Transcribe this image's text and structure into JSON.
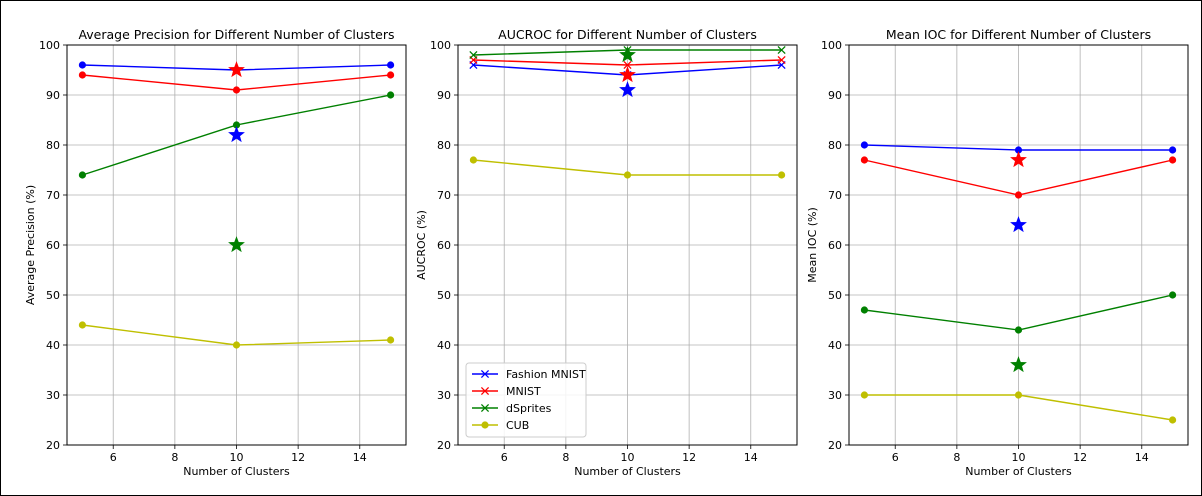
{
  "chart_data": [
    {
      "type": "line",
      "title": "Average Precision for Different Number of Clusters",
      "xlabel": "Number of Clusters",
      "ylabel": "Average Precision (%)",
      "xlim": [
        4.5,
        15.5
      ],
      "ylim": [
        20,
        100
      ],
      "xticks": [
        6,
        8,
        10,
        12,
        14
      ],
      "yticks": [
        20,
        30,
        40,
        50,
        60,
        70,
        80,
        90,
        100
      ],
      "grid": true,
      "x": [
        5,
        10,
        15
      ],
      "marker": "o",
      "series": [
        {
          "color": "#0000ff",
          "values": [
            96,
            95,
            96
          ],
          "star": {
            "x": 10,
            "y": 82
          }
        },
        {
          "color": "#ff0000",
          "values": [
            94,
            91,
            94
          ],
          "star": {
            "x": 10,
            "y": 95
          }
        },
        {
          "color": "#008000",
          "values": [
            74,
            84,
            90
          ],
          "star": {
            "x": 10,
            "y": 60
          }
        },
        {
          "color": "#bfbf00",
          "values": [
            44,
            40,
            41
          ]
        }
      ]
    },
    {
      "type": "line",
      "title": "AUCROC for Different Number of Clusters",
      "xlabel": "Number of Clusters",
      "ylabel": "AUCROC (%)",
      "xlim": [
        4.5,
        15.5
      ],
      "ylim": [
        20,
        100
      ],
      "xticks": [
        6,
        8,
        10,
        12,
        14
      ],
      "yticks": [
        20,
        30,
        40,
        50,
        60,
        70,
        80,
        90,
        100
      ],
      "grid": true,
      "x": [
        5,
        10,
        15
      ],
      "marker": "x",
      "legend_placement": "lower-left",
      "series": [
        {
          "name": "Fashion MNIST",
          "color": "#0000ff",
          "values": [
            96,
            94,
            96
          ],
          "star": {
            "x": 10,
            "y": 91
          }
        },
        {
          "name": "MNIST",
          "color": "#ff0000",
          "values": [
            97,
            96,
            97
          ],
          "star": {
            "x": 10,
            "y": 94
          }
        },
        {
          "name": "dSprites",
          "color": "#008000",
          "values": [
            98,
            99,
            99
          ],
          "star": {
            "x": 10,
            "y": 98
          }
        },
        {
          "name": "CUB",
          "color": "#bfbf00",
          "values": [
            77,
            74,
            74
          ],
          "marker": "o"
        }
      ]
    },
    {
      "type": "line",
      "title": "Mean IOC for Different Number of Clusters",
      "xlabel": "Number of Clusters",
      "ylabel": "Mean IOC (%)",
      "xlim": [
        4.5,
        15.5
      ],
      "ylim": [
        20,
        100
      ],
      "xticks": [
        6,
        8,
        10,
        12,
        14
      ],
      "yticks": [
        20,
        30,
        40,
        50,
        60,
        70,
        80,
        90,
        100
      ],
      "grid": true,
      "x": [
        5,
        10,
        15
      ],
      "marker": "o",
      "series": [
        {
          "color": "#0000ff",
          "values": [
            80,
            79,
            79
          ],
          "star": {
            "x": 10,
            "y": 64
          }
        },
        {
          "color": "#ff0000",
          "values": [
            77,
            70,
            77
          ],
          "star": {
            "x": 10,
            "y": 77
          }
        },
        {
          "color": "#008000",
          "values": [
            47,
            43,
            50
          ],
          "star": {
            "x": 10,
            "y": 36
          }
        },
        {
          "color": "#bfbf00",
          "values": [
            30,
            30,
            25
          ]
        }
      ]
    }
  ]
}
